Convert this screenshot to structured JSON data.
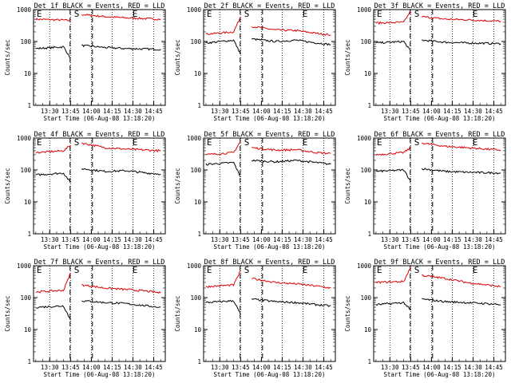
{
  "figure": {
    "ylabel": "Counts/sec",
    "xlabel": "Start Time (06-Aug-08 13:18:20)",
    "xticks": [
      "13:30",
      "13:45",
      "14:00",
      "14:15",
      "14:30",
      "14:45"
    ],
    "yticks": [
      "1",
      "10",
      "100",
      "1000"
    ],
    "markers": {
      "start": "S",
      "end": "E"
    },
    "colors": {
      "events": "#000000",
      "lld": "#dd0000",
      "axes": "#000000",
      "background": "#ffffff"
    }
  },
  "chart_data": [
    {
      "type": "line",
      "title": "Det 1f BLACK = Events, RED = LLD",
      "yscale": "log",
      "ylim": [
        1,
        1000
      ],
      "xlabel": "Start Time (06-Aug-08 13:18:20)",
      "ylabel": "Counts/sec",
      "x_ticks": [
        "13:30",
        "13:45",
        "14:00",
        "14:15",
        "14:30",
        "14:45"
      ],
      "markers": [
        {
          "label": "E",
          "time": "13:20"
        },
        {
          "label": "S",
          "time": "13:47"
        },
        {
          "label": "E",
          "time": "14:29"
        }
      ],
      "series": [
        {
          "name": "LLD",
          "x": [
            "13:20",
            "13:40",
            "13:45",
            "13:47",
            "13:53",
            "14:10",
            "14:25",
            "14:40",
            "14:50"
          ],
          "y": [
            500,
            470,
            450,
            null,
            700,
            600,
            550,
            520,
            500
          ]
        },
        {
          "name": "Events",
          "x": [
            "13:20",
            "13:40",
            "13:45",
            "13:47",
            "13:53",
            "14:10",
            "14:25",
            "14:40",
            "14:50"
          ],
          "y": [
            60,
            68,
            30,
            null,
            75,
            65,
            60,
            58,
            57
          ]
        }
      ]
    },
    {
      "type": "line",
      "title": "Det 2f BLACK = Events, RED = LLD",
      "yscale": "log",
      "ylim": [
        1,
        1000
      ],
      "xlabel": "Start Time (06-Aug-08 13:18:20)",
      "ylabel": "Counts/sec",
      "x_ticks": [
        "13:30",
        "13:45",
        "14:00",
        "14:15",
        "14:30",
        "14:45"
      ],
      "markers": [
        {
          "label": "E",
          "time": "13:20"
        },
        {
          "label": "S",
          "time": "13:47"
        },
        {
          "label": "E",
          "time": "14:29"
        }
      ],
      "series": [
        {
          "name": "LLD",
          "x": [
            "13:20",
            "13:40",
            "13:45",
            "13:47",
            "13:53",
            "14:10",
            "14:25",
            "14:40",
            "14:50"
          ],
          "y": [
            170,
            200,
            600,
            null,
            300,
            230,
            220,
            180,
            160
          ]
        },
        {
          "name": "Events",
          "x": [
            "13:20",
            "13:40",
            "13:45",
            "13:47",
            "13:53",
            "14:10",
            "14:25",
            "14:40",
            "14:50"
          ],
          "y": [
            90,
            110,
            40,
            null,
            120,
            100,
            110,
            90,
            80
          ]
        }
      ]
    },
    {
      "type": "line",
      "title": "Det 3f BLACK = Events, RED = LLD",
      "yscale": "log",
      "ylim": [
        1,
        1000
      ],
      "xlabel": "Start Time (06-Aug-08 13:18:20)",
      "ylabel": "Counts/sec",
      "x_ticks": [
        "13:30",
        "13:45",
        "14:00",
        "14:15",
        "14:30",
        "14:45"
      ],
      "markers": [
        {
          "label": "E",
          "time": "13:20"
        },
        {
          "label": "S",
          "time": "13:47"
        },
        {
          "label": "E",
          "time": "14:29"
        }
      ],
      "series": [
        {
          "name": "LLD",
          "x": [
            "13:20",
            "13:40",
            "13:45",
            "13:47",
            "13:53",
            "14:10",
            "14:25",
            "14:40",
            "14:50"
          ],
          "y": [
            380,
            400,
            900,
            null,
            600,
            500,
            480,
            450,
            430
          ]
        },
        {
          "name": "Events",
          "x": [
            "13:20",
            "13:40",
            "13:45",
            "13:47",
            "13:53",
            "14:10",
            "14:25",
            "14:40",
            "14:50"
          ],
          "y": [
            90,
            100,
            50,
            null,
            110,
            95,
            90,
            88,
            85
          ]
        }
      ]
    },
    {
      "type": "line",
      "title": "Det 4f BLACK = Events, RED = LLD",
      "yscale": "log",
      "ylim": [
        1,
        1000
      ],
      "xlabel": "Start Time (06-Aug-08 13:18:20)",
      "ylabel": "Counts/sec",
      "x_ticks": [
        "13:30",
        "13:45",
        "14:00",
        "14:15",
        "14:30",
        "14:45"
      ],
      "markers": [
        {
          "label": "E",
          "time": "13:20"
        },
        {
          "label": "S",
          "time": "13:47"
        },
        {
          "label": "E",
          "time": "14:29"
        }
      ],
      "series": [
        {
          "name": "LLD",
          "x": [
            "13:20",
            "13:40",
            "13:45",
            "13:47",
            "13:53",
            "14:10",
            "14:25",
            "14:40",
            "14:50"
          ],
          "y": [
            350,
            400,
            600,
            null,
            700,
            500,
            450,
            420,
            400
          ]
        },
        {
          "name": "Events",
          "x": [
            "13:20",
            "13:40",
            "13:45",
            "13:47",
            "13:53",
            "14:10",
            "14:25",
            "14:40",
            "14:50"
          ],
          "y": [
            70,
            80,
            40,
            null,
            110,
            90,
            95,
            80,
            75
          ]
        }
      ]
    },
    {
      "type": "line",
      "title": "Det 5f BLACK = Events, RED = LLD",
      "yscale": "log",
      "ylim": [
        1,
        1000
      ],
      "xlabel": "Start Time (06-Aug-08 13:18:20)",
      "ylabel": "Counts/sec",
      "x_ticks": [
        "13:30",
        "13:45",
        "14:00",
        "14:15",
        "14:30",
        "14:45"
      ],
      "markers": [
        {
          "label": "E",
          "time": "13:20"
        },
        {
          "label": "S",
          "time": "13:47"
        },
        {
          "label": "E",
          "time": "14:29"
        }
      ],
      "series": [
        {
          "name": "LLD",
          "x": [
            "13:20",
            "13:40",
            "13:45",
            "13:47",
            "13:53",
            "14:10",
            "14:25",
            "14:40",
            "14:50"
          ],
          "y": [
            300,
            350,
            800,
            null,
            500,
            420,
            430,
            350,
            330
          ]
        },
        {
          "name": "Events",
          "x": [
            "13:20",
            "13:40",
            "13:45",
            "13:47",
            "13:53",
            "14:10",
            "14:25",
            "14:40",
            "14:50"
          ],
          "y": [
            150,
            170,
            60,
            null,
            200,
            180,
            200,
            170,
            150
          ]
        }
      ]
    },
    {
      "type": "line",
      "title": "Det 6f BLACK = Events, RED = LLD",
      "yscale": "log",
      "ylim": [
        1,
        1000
      ],
      "xlabel": "Start Time (06-Aug-08 13:18:20)",
      "ylabel": "Counts/sec",
      "x_ticks": [
        "13:30",
        "13:45",
        "14:00",
        "14:15",
        "14:30",
        "14:45"
      ],
      "markers": [
        {
          "label": "E",
          "time": "13:20"
        },
        {
          "label": "S",
          "time": "13:47"
        },
        {
          "label": "E",
          "time": "14:29"
        }
      ],
      "series": [
        {
          "name": "LLD",
          "x": [
            "13:20",
            "13:40",
            "13:45",
            "13:47",
            "13:53",
            "14:10",
            "14:25",
            "14:40",
            "14:50"
          ],
          "y": [
            300,
            350,
            500,
            null,
            700,
            550,
            500,
            450,
            420
          ]
        },
        {
          "name": "Events",
          "x": [
            "13:20",
            "13:40",
            "13:45",
            "13:47",
            "13:53",
            "14:10",
            "14:25",
            "14:40",
            "14:50"
          ],
          "y": [
            90,
            100,
            45,
            null,
            110,
            90,
            85,
            82,
            80
          ]
        }
      ]
    },
    {
      "type": "line",
      "title": "Det 7f BLACK = Events, RED = LLD",
      "yscale": "log",
      "ylim": [
        1,
        1000
      ],
      "xlabel": "Start Time (06-Aug-08 13:18:20)",
      "ylabel": "Counts/sec",
      "x_ticks": [
        "13:30",
        "13:45",
        "14:00",
        "14:15",
        "14:30",
        "14:45"
      ],
      "markers": [
        {
          "label": "E",
          "time": "13:20"
        },
        {
          "label": "S",
          "time": "13:47"
        },
        {
          "label": "E",
          "time": "14:29"
        }
      ],
      "series": [
        {
          "name": "LLD",
          "x": [
            "13:20",
            "13:40",
            "13:45",
            "13:47",
            "13:53",
            "14:10",
            "14:25",
            "14:40",
            "14:50"
          ],
          "y": [
            150,
            170,
            600,
            null,
            250,
            200,
            180,
            160,
            140
          ]
        },
        {
          "name": "Events",
          "x": [
            "13:20",
            "13:40",
            "13:45",
            "13:47",
            "13:53",
            "14:10",
            "14:25",
            "14:40",
            "14:50"
          ],
          "y": [
            50,
            55,
            20,
            null,
            80,
            70,
            65,
            55,
            50
          ]
        }
      ]
    },
    {
      "type": "line",
      "title": "Det 8f BLACK = Events, RED = LLD",
      "yscale": "log",
      "ylim": [
        1,
        1000
      ],
      "xlabel": "Start Time (06-Aug-08 13:18:20)",
      "ylabel": "Counts/sec",
      "x_ticks": [
        "13:30",
        "13:45",
        "14:00",
        "14:15",
        "14:30",
        "14:45"
      ],
      "markers": [
        {
          "label": "E",
          "time": "13:20"
        },
        {
          "label": "S",
          "time": "13:47"
        },
        {
          "label": "E",
          "time": "14:29"
        }
      ],
      "series": [
        {
          "name": "LLD",
          "x": [
            "13:20",
            "13:40",
            "13:45",
            "13:47",
            "13:53",
            "14:10",
            "14:25",
            "14:40",
            "14:50"
          ],
          "y": [
            220,
            250,
            700,
            null,
            400,
            300,
            270,
            230,
            200
          ]
        },
        {
          "name": "Events",
          "x": [
            "13:20",
            "13:40",
            "13:45",
            "13:47",
            "13:53",
            "14:10",
            "14:25",
            "14:40",
            "14:50"
          ],
          "y": [
            70,
            80,
            30,
            null,
            90,
            75,
            70,
            60,
            55
          ]
        }
      ]
    },
    {
      "type": "line",
      "title": "Det 9f BLACK = Events, RED = LLD",
      "yscale": "log",
      "ylim": [
        1,
        1000
      ],
      "xlabel": "Start Time (06-Aug-08 13:18:20)",
      "ylabel": "Counts/sec",
      "x_ticks": [
        "13:30",
        "13:45",
        "14:00",
        "14:15",
        "14:30",
        "14:45"
      ],
      "markers": [
        {
          "label": "E",
          "time": "13:20"
        },
        {
          "label": "S",
          "time": "13:47"
        },
        {
          "label": "E",
          "time": "14:29"
        }
      ],
      "series": [
        {
          "name": "LLD",
          "x": [
            "13:20",
            "13:40",
            "13:45",
            "13:47",
            "13:53",
            "14:10",
            "14:25",
            "14:40",
            "14:50"
          ],
          "y": [
            300,
            320,
            900,
            null,
            500,
            400,
            300,
            250,
            220
          ]
        },
        {
          "name": "Events",
          "x": [
            "13:20",
            "13:40",
            "13:45",
            "13:47",
            "13:53",
            "14:10",
            "14:25",
            "14:40",
            "14:50"
          ],
          "y": [
            60,
            70,
            40,
            null,
            90,
            75,
            70,
            65,
            60
          ]
        }
      ]
    }
  ]
}
